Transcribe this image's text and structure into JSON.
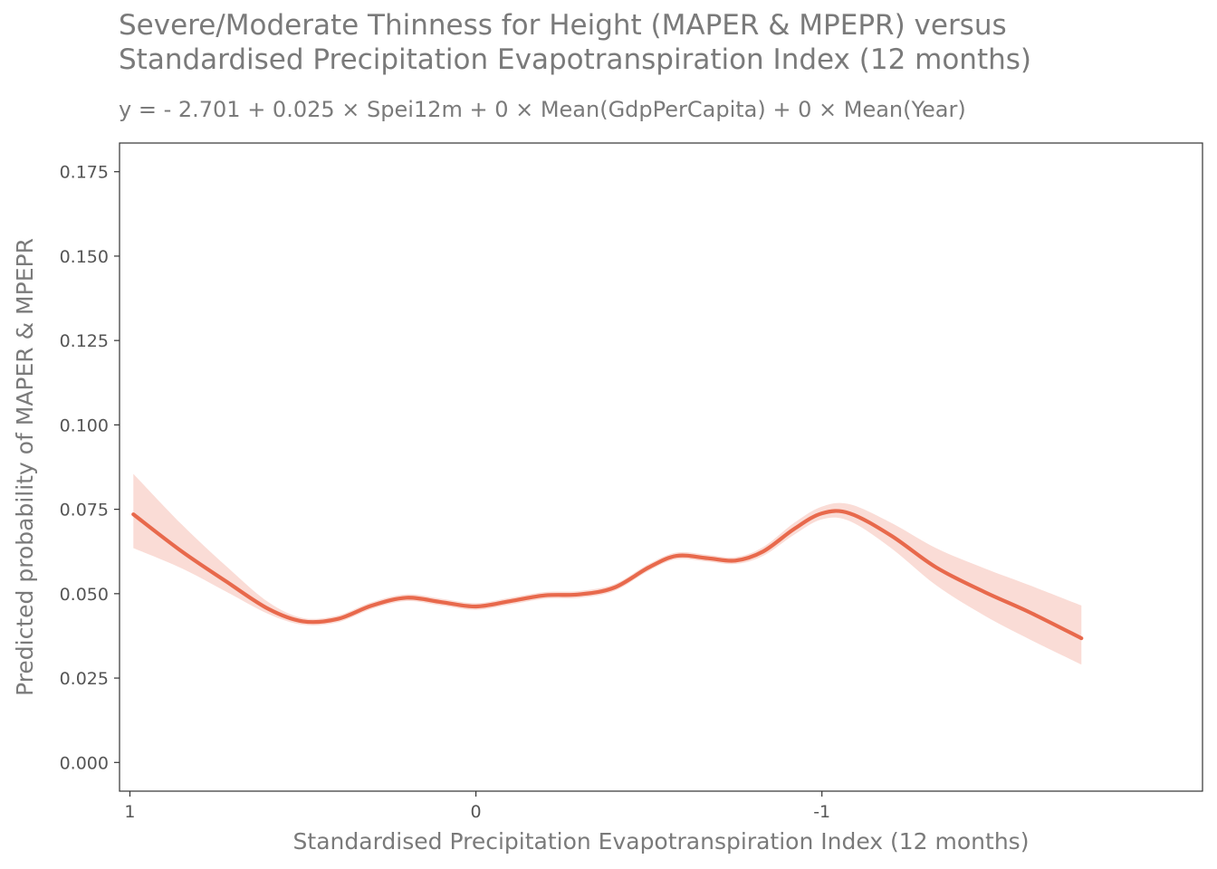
{
  "chart_data": {
    "type": "line",
    "title_lines": [
      "Severe/Moderate Thinness for Height (MAPER & MPEPR) versus",
      "Standardised Precipitation Evapotranspiration Index (12 months)"
    ],
    "subtitle": "y =  - 2.701 + 0.025 × Spei12m + 0 × Mean(GdpPerCapita) + 0 × Mean(Year)",
    "xlabel": "Standardised Precipitation Evapotranspiration Index (12 months)",
    "ylabel": "Predicted probability of MAPER & MPEPR",
    "x_reversed": true,
    "xlim": [
      1.03,
      -2.1
    ],
    "ylim": [
      -0.0085,
      0.1835
    ],
    "x_ticks": [
      1,
      0,
      -1
    ],
    "x_tick_labels": [
      "1",
      "0",
      "-1"
    ],
    "y_ticks": [
      0,
      0.025,
      0.05,
      0.075,
      0.1,
      0.125,
      0.15,
      0.175
    ],
    "y_tick_labels": [
      "0.000",
      "0.025",
      "0.050",
      "0.075",
      "0.100",
      "0.125",
      "0.150",
      "0.175"
    ],
    "grid": false,
    "colors": {
      "line": "#e8694c",
      "band": "#fadcd6",
      "frame": "#333333"
    },
    "series": [
      {
        "x": [
          0.99,
          0.85,
          0.72,
          0.6,
          0.5,
          0.4,
          0.3,
          0.2,
          0.1,
          0.0,
          -0.1,
          -0.2,
          -0.3,
          -0.4,
          -0.5,
          -0.58,
          -0.67,
          -0.75,
          -0.83,
          -0.92,
          -1.0,
          -1.08,
          -1.2,
          -1.33,
          -1.47,
          -1.6,
          -1.75
        ],
        "y": [
          0.0735,
          0.0625,
          0.0535,
          0.0455,
          0.0418,
          0.0425,
          0.0465,
          0.0488,
          0.0475,
          0.0462,
          0.0478,
          0.0495,
          0.0498,
          0.0518,
          0.0578,
          0.0612,
          0.0605,
          0.0598,
          0.0625,
          0.0692,
          0.0738,
          0.0738,
          0.0672,
          0.0578,
          0.0505,
          0.0445,
          0.0368
        ],
        "lower": [
          0.0635,
          0.0575,
          0.0505,
          0.044,
          0.0408,
          0.0415,
          0.0455,
          0.0478,
          0.0465,
          0.0452,
          0.0468,
          0.0485,
          0.0488,
          0.0508,
          0.0568,
          0.0602,
          0.0595,
          0.0588,
          0.0612,
          0.0675,
          0.072,
          0.0715,
          0.0635,
          0.0525,
          0.0435,
          0.0365,
          0.029
        ],
        "upper": [
          0.0855,
          0.0705,
          0.058,
          0.0475,
          0.0428,
          0.0435,
          0.0475,
          0.0498,
          0.0485,
          0.0472,
          0.0488,
          0.0505,
          0.0508,
          0.0528,
          0.0588,
          0.0622,
          0.0615,
          0.0608,
          0.0638,
          0.071,
          0.0758,
          0.0765,
          0.071,
          0.0635,
          0.0575,
          0.0525,
          0.0465
        ]
      }
    ]
  }
}
